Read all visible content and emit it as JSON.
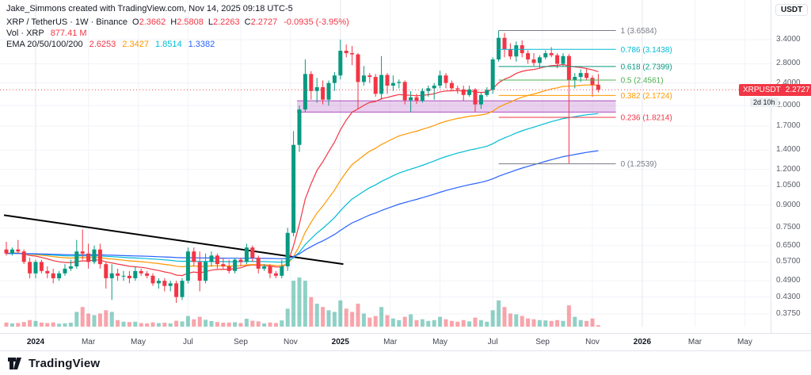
{
  "attribution": "Jake_Simmons created with TradingView.com, Nov 14, 2025 09:18 UTC-5",
  "legend": {
    "symbol": "XRP / TetherUS · 1W · Binance",
    "o_label": "O",
    "o": "2.3662",
    "h_label": "H",
    "h": "2.5808",
    "l_label": "L",
    "l": "2.2263",
    "c_label": "C",
    "c": "2.2727",
    "change": "-0.0935 (-3.95%)",
    "vol_label": "Vol · XRP",
    "vol_value": "877.41 M",
    "ema_label": "EMA 20/50/100/200",
    "ema_values": [
      "2.6253",
      "2.3427",
      "1.8514",
      "1.3382"
    ]
  },
  "price_axis": {
    "currency": "USDT",
    "labels": [
      "3.4000",
      "2.8000",
      "2.4000",
      "2.0000",
      "1.7000",
      "1.4000",
      "1.2000",
      "1.0500",
      "0.9000",
      "0.7500",
      "0.6500",
      "0.5700",
      "0.4900",
      "0.4300",
      "0.3750"
    ],
    "badge": {
      "symbol": "XRPUSDT",
      "price": "2.2727",
      "countdown": "2d 10h"
    }
  },
  "time_axis": {
    "ticks": [
      {
        "label": "2024",
        "i": 5,
        "year": true
      },
      {
        "label": "Mar",
        "i": 14
      },
      {
        "label": "May",
        "i": 22.5
      },
      {
        "label": "Jul",
        "i": 31
      },
      {
        "label": "Sep",
        "i": 40
      },
      {
        "label": "Nov",
        "i": 48.5
      },
      {
        "label": "2025",
        "i": 57,
        "year": true
      },
      {
        "label": "Mar",
        "i": 65.5
      },
      {
        "label": "May",
        "i": 74
      },
      {
        "label": "Jul",
        "i": 83
      },
      {
        "label": "Sep",
        "i": 91.5
      },
      {
        "label": "Nov",
        "i": 100
      },
      {
        "label": "2026",
        "i": 108.5,
        "year": true
      },
      {
        "label": "Mar",
        "i": 117.5
      },
      {
        "label": "May",
        "i": 126
      }
    ]
  },
  "footer": {
    "brand": "TradingView"
  },
  "colors": {
    "up": "#089981",
    "down": "#f23645",
    "band": "#9c27b0",
    "grid_minor": "#f1f3f8",
    "grid_major": "#e4e7ee"
  },
  "chart_data": {
    "type": "candlestick",
    "title": "XRP / TetherUS Weekly on Binance",
    "interval": "1W",
    "scale": "log",
    "current_price": 2.2727,
    "ohlc_last": {
      "open": 2.3662,
      "high": 2.5808,
      "low": 2.2263,
      "close": 2.2727
    },
    "volume_max_billions": 30,
    "candles_note": "each candle = [open, high, low, close, volume_in_billions], weekly Dec 2023 - Nov 2025",
    "candles": [
      [
        0.63,
        0.67,
        0.6,
        0.61,
        2.5
      ],
      [
        0.61,
        0.64,
        0.6,
        0.63,
        2.0
      ],
      [
        0.63,
        0.68,
        0.61,
        0.62,
        2.2
      ],
      [
        0.62,
        0.63,
        0.56,
        0.57,
        2.8
      ],
      [
        0.57,
        0.59,
        0.5,
        0.52,
        4.0
      ],
      [
        0.52,
        0.58,
        0.5,
        0.57,
        3.5
      ],
      [
        0.57,
        0.58,
        0.52,
        0.53,
        2.5
      ],
      [
        0.53,
        0.55,
        0.5,
        0.52,
        2.2
      ],
      [
        0.52,
        0.54,
        0.48,
        0.5,
        2.6
      ],
      [
        0.5,
        0.53,
        0.49,
        0.52,
        1.8
      ],
      [
        0.52,
        0.56,
        0.51,
        0.54,
        2.0
      ],
      [
        0.54,
        0.58,
        0.53,
        0.55,
        2.4
      ],
      [
        0.55,
        0.68,
        0.54,
        0.62,
        9.0
      ],
      [
        0.62,
        0.74,
        0.58,
        0.61,
        12.0
      ],
      [
        0.61,
        0.66,
        0.54,
        0.57,
        8.0
      ],
      [
        0.57,
        0.65,
        0.56,
        0.63,
        7.0
      ],
      [
        0.63,
        0.66,
        0.54,
        0.56,
        8.0
      ],
      [
        0.56,
        0.57,
        0.46,
        0.5,
        10.0
      ],
      [
        0.5,
        0.56,
        0.42,
        0.52,
        9.0
      ],
      [
        0.52,
        0.54,
        0.49,
        0.51,
        4.0
      ],
      [
        0.51,
        0.53,
        0.49,
        0.51,
        3.0
      ],
      [
        0.51,
        0.53,
        0.48,
        0.5,
        2.8
      ],
      [
        0.5,
        0.55,
        0.49,
        0.53,
        3.0
      ],
      [
        0.53,
        0.54,
        0.51,
        0.52,
        2.2
      ],
      [
        0.52,
        0.53,
        0.5,
        0.51,
        2.0
      ],
      [
        0.51,
        0.52,
        0.47,
        0.48,
        2.6
      ],
      [
        0.48,
        0.5,
        0.46,
        0.49,
        2.2
      ],
      [
        0.49,
        0.5,
        0.45,
        0.47,
        2.4
      ],
      [
        0.47,
        0.49,
        0.45,
        0.48,
        2.0
      ],
      [
        0.48,
        0.49,
        0.41,
        0.43,
        3.6
      ],
      [
        0.43,
        0.5,
        0.42,
        0.49,
        3.2
      ],
      [
        0.49,
        0.64,
        0.48,
        0.62,
        6.5
      ],
      [
        0.62,
        0.64,
        0.55,
        0.57,
        4.5
      ],
      [
        0.57,
        0.62,
        0.45,
        0.49,
        6.0
      ],
      [
        0.49,
        0.61,
        0.48,
        0.57,
        4.2
      ],
      [
        0.57,
        0.62,
        0.55,
        0.6,
        3.4
      ],
      [
        0.6,
        0.61,
        0.54,
        0.56,
        2.8
      ],
      [
        0.56,
        0.59,
        0.54,
        0.55,
        2.4
      ],
      [
        0.55,
        0.58,
        0.52,
        0.53,
        2.5
      ],
      [
        0.53,
        0.59,
        0.52,
        0.58,
        2.7
      ],
      [
        0.58,
        0.59,
        0.55,
        0.57,
        2.2
      ],
      [
        0.57,
        0.66,
        0.56,
        0.64,
        4.8
      ],
      [
        0.64,
        0.65,
        0.57,
        0.59,
        3.6
      ],
      [
        0.59,
        0.6,
        0.52,
        0.54,
        3.2
      ],
      [
        0.54,
        0.56,
        0.53,
        0.55,
        2.0
      ],
      [
        0.55,
        0.56,
        0.5,
        0.52,
        2.5
      ],
      [
        0.52,
        0.53,
        0.5,
        0.51,
        2.2
      ],
      [
        0.51,
        0.58,
        0.5,
        0.55,
        3.8
      ],
      [
        0.55,
        0.75,
        0.53,
        0.72,
        11.0
      ],
      [
        0.72,
        1.63,
        0.7,
        1.46,
        28.0
      ],
      [
        1.46,
        2.0,
        1.38,
        1.94,
        30.0
      ],
      [
        1.94,
        2.9,
        1.9,
        2.58,
        28.0
      ],
      [
        2.58,
        2.64,
        2.1,
        2.25,
        18.0
      ],
      [
        2.25,
        2.5,
        2.05,
        2.32,
        14.0
      ],
      [
        2.32,
        2.45,
        2.02,
        2.1,
        12.0
      ],
      [
        2.1,
        2.45,
        2.0,
        2.4,
        10.0
      ],
      [
        2.4,
        2.62,
        2.25,
        2.55,
        9.0
      ],
      [
        2.55,
        3.4,
        2.47,
        3.11,
        16.0
      ],
      [
        3.11,
        3.27,
        2.95,
        3.05,
        11.0
      ],
      [
        3.05,
        3.23,
        2.77,
        3.02,
        9.0
      ],
      [
        3.02,
        3.05,
        1.95,
        2.42,
        14.0
      ],
      [
        2.42,
        2.75,
        2.35,
        2.55,
        8.0
      ],
      [
        2.55,
        2.6,
        2.4,
        2.52,
        5.5
      ],
      [
        2.52,
        2.58,
        2.15,
        2.2,
        6.5
      ],
      [
        2.2,
        2.98,
        2.1,
        2.56,
        12.0
      ],
      [
        2.56,
        2.6,
        2.2,
        2.35,
        7.0
      ],
      [
        2.35,
        2.55,
        2.25,
        2.4,
        5.0
      ],
      [
        2.4,
        2.47,
        2.3,
        2.42,
        4.0
      ],
      [
        2.42,
        2.45,
        2.02,
        2.09,
        6.0
      ],
      [
        2.09,
        2.25,
        1.9,
        2.14,
        7.5
      ],
      [
        2.14,
        2.2,
        2.03,
        2.08,
        4.0
      ],
      [
        2.08,
        2.3,
        2.05,
        2.25,
        4.5
      ],
      [
        2.25,
        2.35,
        2.15,
        2.3,
        3.5
      ],
      [
        2.3,
        2.4,
        2.1,
        2.35,
        4.0
      ],
      [
        2.35,
        2.65,
        2.3,
        2.55,
        6.0
      ],
      [
        2.55,
        2.6,
        2.3,
        2.4,
        4.5
      ],
      [
        2.4,
        2.45,
        2.25,
        2.3,
        3.5
      ],
      [
        2.3,
        2.35,
        2.2,
        2.28,
        3.0
      ],
      [
        2.28,
        2.35,
        2.08,
        2.18,
        4.0
      ],
      [
        2.18,
        2.35,
        2.15,
        2.28,
        3.2
      ],
      [
        2.28,
        2.3,
        1.9,
        2.02,
        5.5
      ],
      [
        2.02,
        2.22,
        1.95,
        2.18,
        4.0
      ],
      [
        2.18,
        2.32,
        2.15,
        2.27,
        3.0
      ],
      [
        2.27,
        2.95,
        2.2,
        2.9,
        10.0
      ],
      [
        2.9,
        3.6584,
        2.85,
        3.45,
        16.0
      ],
      [
        3.45,
        3.59,
        2.95,
        3.15,
        12.0
      ],
      [
        3.15,
        3.3,
        2.9,
        2.97,
        8.0
      ],
      [
        2.97,
        3.35,
        2.85,
        3.25,
        7.5
      ],
      [
        3.25,
        3.38,
        2.95,
        3.05,
        6.5
      ],
      [
        3.05,
        3.12,
        2.8,
        2.9,
        5.0
      ],
      [
        2.9,
        3.05,
        2.75,
        2.82,
        4.5
      ],
      [
        2.82,
        3.0,
        2.7,
        2.95,
        4.0
      ],
      [
        2.95,
        3.12,
        2.9,
        3.05,
        3.8
      ],
      [
        3.05,
        3.2,
        2.95,
        3.0,
        3.5
      ],
      [
        3.0,
        3.05,
        2.7,
        2.8,
        4.0
      ],
      [
        2.8,
        3.05,
        2.75,
        2.98,
        3.5
      ],
      [
        2.98,
        3.03,
        1.2539,
        2.45,
        13.0
      ],
      [
        2.45,
        2.6,
        2.3,
        2.52,
        6.0
      ],
      [
        2.52,
        2.68,
        2.42,
        2.6,
        4.0
      ],
      [
        2.6,
        2.7,
        2.45,
        2.5,
        3.5
      ],
      [
        2.5,
        2.55,
        2.15,
        2.3662,
        5.0
      ],
      [
        2.3662,
        2.5808,
        2.2263,
        2.2727,
        0.88
      ]
    ],
    "emas": [
      {
        "period": 20,
        "color": "#f23645",
        "last": 2.6253
      },
      {
        "period": 50,
        "color": "#ff9800",
        "last": 2.3427
      },
      {
        "period": 100,
        "color": "#00bcd4",
        "last": 1.8514
      },
      {
        "period": 200,
        "color": "#2962ff",
        "last": 1.3382
      }
    ],
    "fib": {
      "from_i": 84,
      "to_i": 104,
      "levels": [
        {
          "label": "1 (3.6584)",
          "price": 3.6584,
          "color": "#787b86"
        },
        {
          "label": "0.786 (3.1438)",
          "price": 3.1438,
          "color": "#00bcd4"
        },
        {
          "label": "0.618 (2.7399)",
          "price": 2.7399,
          "color": "#089981"
        },
        {
          "label": "0.5 (2.4561)",
          "price": 2.4561,
          "color": "#4caf50"
        },
        {
          "label": "0.382 (2.1724)",
          "price": 2.1724,
          "color": "#ff9800"
        },
        {
          "label": "0.236 (1.8214)",
          "price": 1.8214,
          "color": "#f23645"
        },
        {
          "label": "0 (1.2539)",
          "price": 1.2539,
          "color": "#787b86"
        }
      ]
    },
    "zone": {
      "from_i": 50,
      "to_i": 104,
      "top": 2.08,
      "bottom": 1.9,
      "color": "#9c27b0"
    },
    "trendline": {
      "from_i": -0.4,
      "from_price": 0.83,
      "to_i": 57.5,
      "to_price": 0.56,
      "color": "#000000"
    }
  }
}
